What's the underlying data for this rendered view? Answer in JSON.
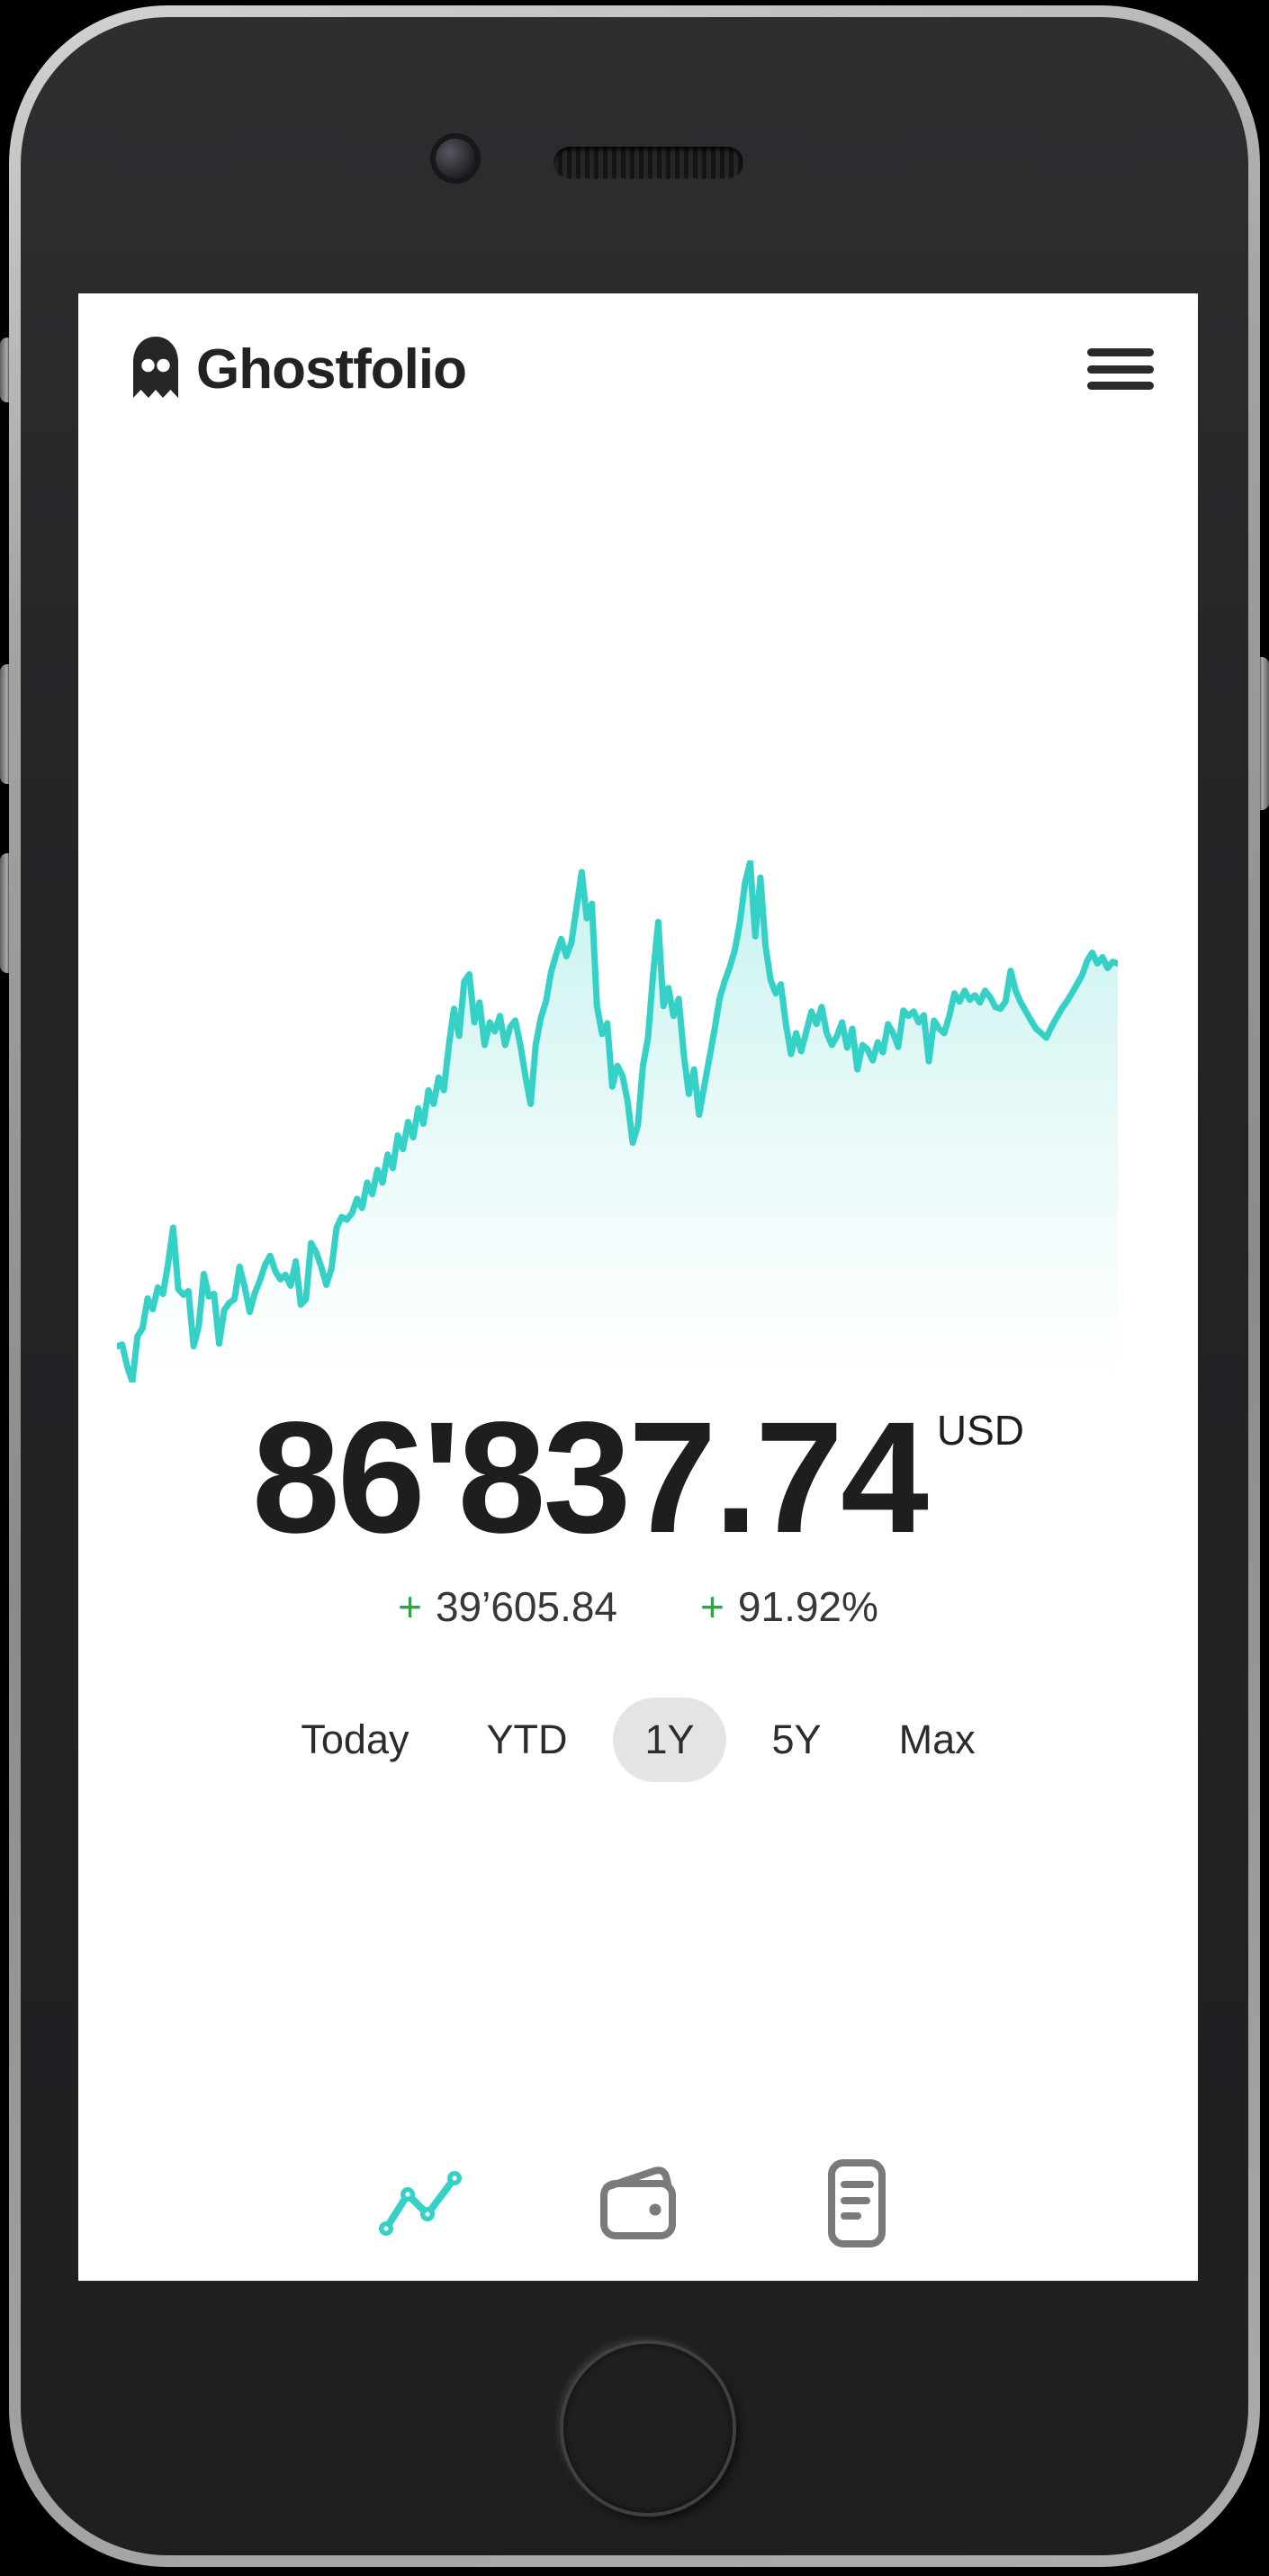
{
  "app": {
    "title": "Ghostfolio"
  },
  "header": {
    "logo_icon": "ghost-icon",
    "title": "Ghostfolio",
    "menu_icon": "hamburger-icon"
  },
  "summary": {
    "value": "86'837.74",
    "currency": "USD",
    "change_abs_sign": "+",
    "change_abs": "39’605.84",
    "change_pct_sign": "+",
    "change_pct": "91.92%"
  },
  "range_selector": {
    "options": [
      {
        "label": "Today",
        "selected": false
      },
      {
        "label": "YTD",
        "selected": false
      },
      {
        "label": "1Y",
        "selected": true
      },
      {
        "label": "5Y",
        "selected": false
      },
      {
        "label": "Max",
        "selected": false
      }
    ]
  },
  "bottom_nav": [
    {
      "icon": "line-chart-icon",
      "active": true
    },
    {
      "icon": "wallet-icon",
      "active": false
    },
    {
      "icon": "report-icon",
      "active": false
    }
  ],
  "colors": {
    "accent_teal": "#36d1c6",
    "positive_green": "#31a24a",
    "text_dark": "#1e1e20",
    "pill_gray": "#e4e4e6",
    "nav_inactive_gray": "#7a7a7a"
  },
  "chart_data": {
    "type": "area",
    "title": "Portfolio performance (1Y)",
    "xlabel": "",
    "ylabel": "",
    "x_axis": "hidden",
    "y_axis": "hidden",
    "grid": false,
    "legend": false,
    "ylim": [
      43500,
      97500
    ],
    "end_value": 86837.74,
    "values": [
      47240,
      47430,
      45180,
      43590,
      48270,
      49110,
      52200,
      51080,
      53330,
      52670,
      55760,
      59510,
      53140,
      52580,
      52950,
      47240,
      49300,
      54730,
      52390,
      52670,
      47520,
      50990,
      51740,
      52110,
      55480,
      53420,
      50800,
      52770,
      54080,
      55670,
      56610,
      55010,
      54170,
      54640,
      53510,
      56040,
      51550,
      52110,
      57920,
      56980,
      55480,
      53600,
      55290,
      59510,
      60630,
      60350,
      61000,
      62500,
      61560,
      64180,
      62970,
      65490,
      64180,
      67080,
      65680,
      69050,
      67640,
      70450,
      68860,
      71860,
      70270,
      73730,
      72320,
      75040,
      73730,
      78410,
      82160,
      79350,
      84970,
      85720,
      80750,
      82810,
      78410,
      80750,
      79820,
      81410,
      78410,
      80280,
      80940,
      78410,
      75130,
      72320,
      78410,
      81220,
      82900,
      85900,
      87770,
      89370,
      87590,
      88990,
      92640,
      96290,
      91520,
      93020,
      82440,
      79540,
      80660,
      74110,
      76260,
      75230,
      72610,
      68300,
      70080,
      76260,
      79160,
      85720,
      91140,
      82440,
      84310,
      81410,
      83190,
      77380,
      73360,
      75890,
      71200,
      74110,
      77010,
      79910,
      83190,
      84970,
      86460,
      88240,
      91140,
      95170,
      97320,
      89650,
      95730,
      88710,
      85150,
      83750,
      84690,
      80570,
      77480,
      79630,
      77760,
      79820,
      81880,
      80570,
      82350,
      79630,
      78410,
      79350,
      80750,
      78130,
      80100,
      75890,
      78410,
      77950,
      76820,
      78690,
      77660,
      80570,
      79630,
      78220,
      81970,
      81410,
      81880,
      80750,
      81500,
      76730,
      80940,
      80100,
      79630,
      81410,
      83750,
      82900,
      84030,
      83090,
      83560,
      82810,
      84030,
      83370,
      82350,
      82160,
      82900,
      86090,
      84030,
      82810,
      81880,
      80940,
      80100,
      79630,
      79160,
      80280,
      81220,
      82160,
      82900,
      83750,
      84690,
      85620,
      87120,
      87960,
      86840,
      87490,
      86370,
      87030,
      86838
    ]
  }
}
